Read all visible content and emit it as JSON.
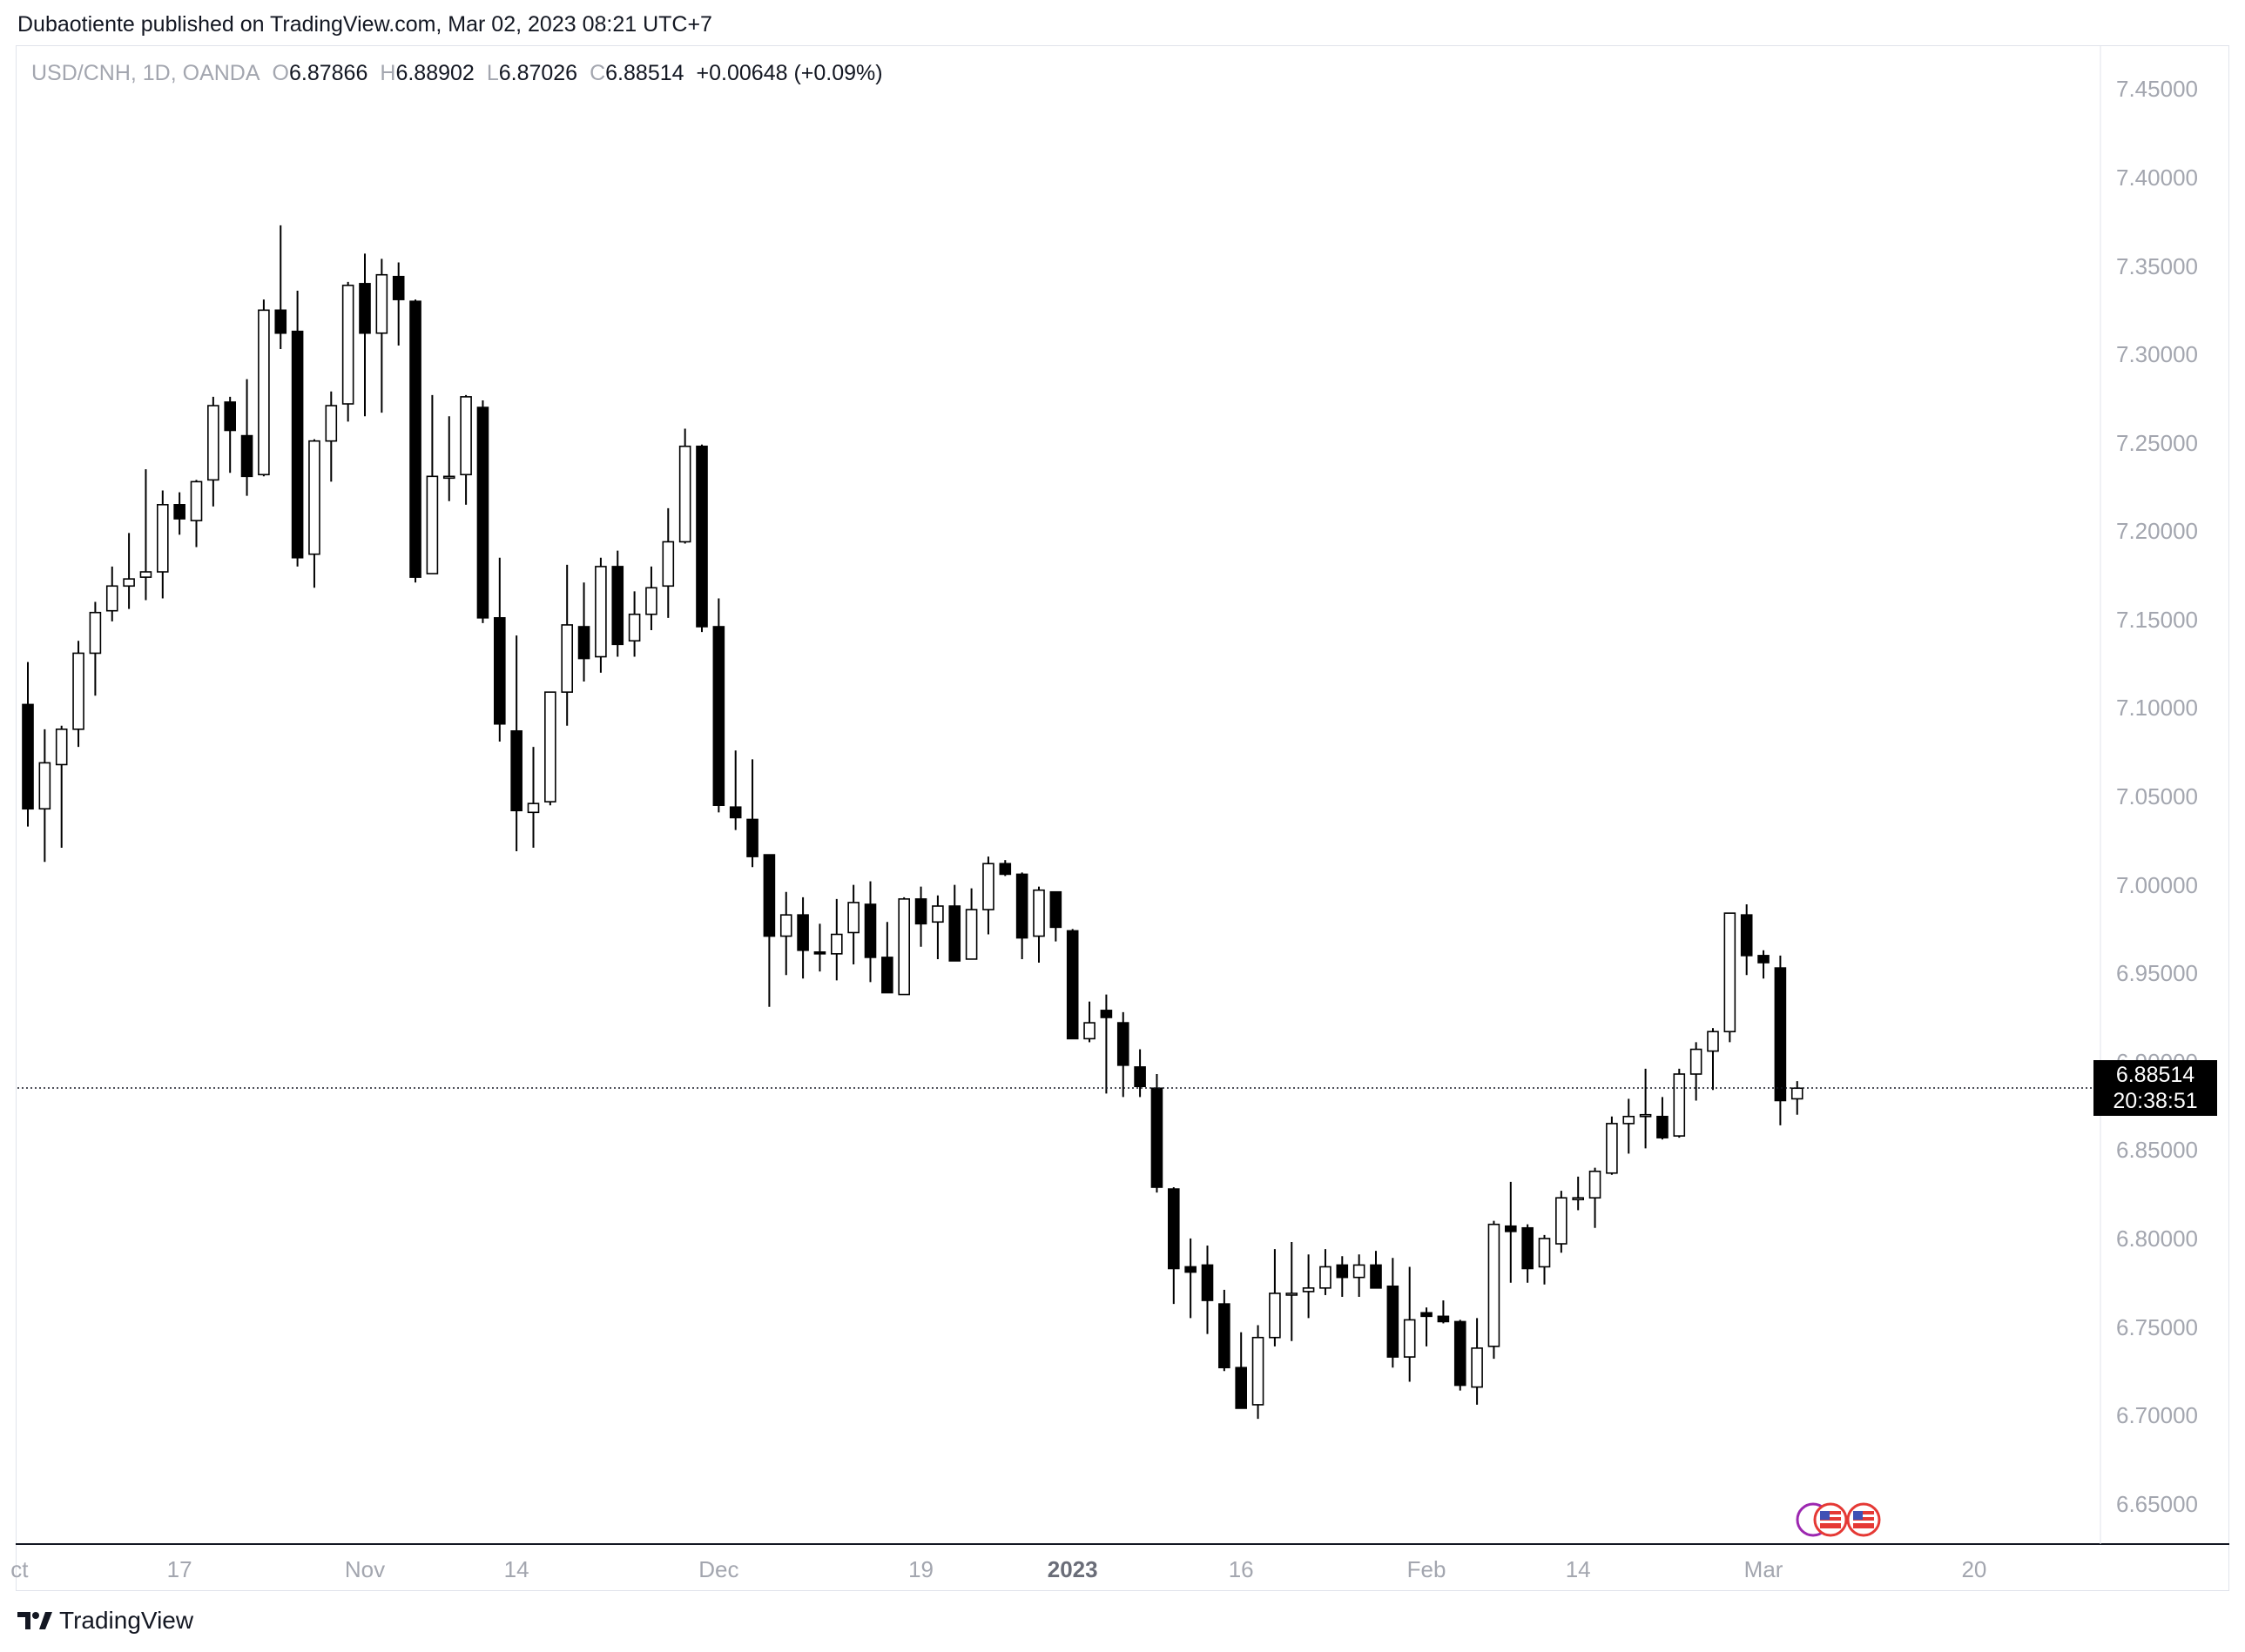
{
  "header": {
    "published": "Dubaotiente published on TradingView.com, Mar 02, 2023 08:21 UTC+7"
  },
  "legend": {
    "symbol": "USD/CNH, 1D, OANDA",
    "o_label": "O",
    "o": "6.87866",
    "h_label": "H",
    "h": "6.88902",
    "l_label": "L",
    "l": "6.87026",
    "c_label": "C",
    "c": "6.88514",
    "change": "+0.00648 (+0.09%)"
  },
  "current": {
    "price": "6.88514",
    "countdown": "20:38:51",
    "value": 6.88514
  },
  "footer": {
    "brand": "TradingView"
  },
  "chart_data": {
    "type": "candlestick",
    "ylim": [
      6.6272,
      7.4748
    ],
    "y_ticks": [
      "7.45000",
      "7.40000",
      "7.35000",
      "7.30000",
      "7.25000",
      "7.20000",
      "7.15000",
      "7.10000",
      "7.05000",
      "7.00000",
      "6.95000",
      "6.90000",
      "6.85000",
      "6.80000",
      "6.75000",
      "6.70000",
      "6.65000"
    ],
    "x_ticks": [
      {
        "label": "ct",
        "index": -0.5
      },
      {
        "label": "17",
        "index": 9
      },
      {
        "label": "Nov",
        "index": 20
      },
      {
        "label": "14",
        "index": 29
      },
      {
        "label": "Dec",
        "index": 41
      },
      {
        "label": "19",
        "index": 53
      },
      {
        "label": "2023",
        "index": 62,
        "bold": true
      },
      {
        "label": "16",
        "index": 72
      },
      {
        "label": "Feb",
        "index": 83
      },
      {
        "label": "14",
        "index": 92
      },
      {
        "label": "Mar",
        "index": 103
      },
      {
        "label": "20",
        "index": 115.5
      }
    ],
    "candles": [
      [
        7.102,
        7.126,
        7.033,
        7.043
      ],
      [
        7.043,
        7.088,
        7.013,
        7.069
      ],
      [
        7.068,
        7.09,
        7.021,
        7.088
      ],
      [
        7.088,
        7.138,
        7.078,
        7.131
      ],
      [
        7.131,
        7.16,
        7.107,
        7.154
      ],
      [
        7.155,
        7.18,
        7.149,
        7.169
      ],
      [
        7.169,
        7.199,
        7.156,
        7.173
      ],
      [
        7.174,
        7.235,
        7.161,
        7.177
      ],
      [
        7.177,
        7.223,
        7.162,
        7.215
      ],
      [
        7.215,
        7.222,
        7.198,
        7.207
      ],
      [
        7.206,
        7.229,
        7.191,
        7.228
      ],
      [
        7.229,
        7.276,
        7.214,
        7.271
      ],
      [
        7.273,
        7.276,
        7.233,
        7.257
      ],
      [
        7.254,
        7.286,
        7.22,
        7.231
      ],
      [
        7.232,
        7.331,
        7.231,
        7.325
      ],
      [
        7.325,
        7.373,
        7.303,
        7.312
      ],
      [
        7.313,
        7.336,
        7.18,
        7.185
      ],
      [
        7.187,
        7.252,
        7.168,
        7.251
      ],
      [
        7.251,
        7.279,
        7.228,
        7.271
      ],
      [
        7.272,
        7.341,
        7.262,
        7.339
      ],
      [
        7.34,
        7.357,
        7.265,
        7.312
      ],
      [
        7.312,
        7.354,
        7.267,
        7.345
      ],
      [
        7.344,
        7.352,
        7.305,
        7.331
      ],
      [
        7.33,
        7.331,
        7.171,
        7.174
      ],
      [
        7.176,
        7.277,
        7.176,
        7.231
      ],
      [
        7.231,
        7.265,
        7.217,
        7.231
      ],
      [
        7.232,
        7.277,
        7.215,
        7.276
      ],
      [
        7.27,
        7.274,
        7.148,
        7.151
      ],
      [
        7.151,
        7.185,
        7.081,
        7.091
      ],
      [
        7.087,
        7.141,
        7.019,
        7.042
      ],
      [
        7.041,
        7.078,
        7.021,
        7.046
      ],
      [
        7.047,
        7.109,
        7.045,
        7.109
      ],
      [
        7.109,
        7.181,
        7.09,
        7.147
      ],
      [
        7.146,
        7.171,
        7.115,
        7.128
      ],
      [
        7.129,
        7.185,
        7.12,
        7.18
      ],
      [
        7.18,
        7.189,
        7.129,
        7.136
      ],
      [
        7.138,
        7.166,
        7.129,
        7.153
      ],
      [
        7.153,
        7.18,
        7.144,
        7.168
      ],
      [
        7.169,
        7.213,
        7.151,
        7.194
      ],
      [
        7.194,
        7.258,
        7.193,
        7.248
      ],
      [
        7.248,
        7.249,
        7.143,
        7.146
      ],
      [
        7.146,
        7.162,
        7.041,
        7.045
      ],
      [
        7.044,
        7.076,
        7.031,
        7.038
      ],
      [
        7.037,
        7.071,
        7.01,
        7.016
      ],
      [
        7.017,
        7.014,
        6.931,
        6.971
      ],
      [
        6.971,
        6.996,
        6.949,
        6.983
      ],
      [
        6.983,
        6.993,
        6.947,
        6.963
      ],
      [
        6.962,
        6.978,
        6.951,
        6.961
      ],
      [
        6.961,
        6.992,
        6.946,
        6.972
      ],
      [
        6.973,
        7.0,
        6.955,
        6.99
      ],
      [
        6.989,
        7.002,
        6.945,
        6.959
      ],
      [
        6.959,
        6.979,
        6.939,
        6.939
      ],
      [
        6.938,
        6.993,
        6.938,
        6.992
      ],
      [
        6.992,
        6.999,
        6.965,
        6.978
      ],
      [
        6.979,
        6.994,
        6.958,
        6.988
      ],
      [
        6.988,
        7.0,
        6.958,
        6.957
      ],
      [
        6.958,
        6.998,
        6.958,
        6.986
      ],
      [
        6.986,
        7.016,
        6.972,
        7.012
      ],
      [
        7.012,
        7.014,
        7.005,
        7.006
      ],
      [
        7.006,
        7.007,
        6.958,
        6.97
      ],
      [
        6.971,
        6.999,
        6.956,
        6.997
      ],
      [
        6.996,
        6.996,
        6.968,
        6.976
      ],
      [
        6.974,
        6.975,
        6.921,
        6.913
      ],
      [
        6.913,
        6.934,
        6.911,
        6.922
      ],
      [
        6.929,
        6.938,
        6.882,
        6.925
      ],
      [
        6.922,
        6.928,
        6.88,
        6.898
      ],
      [
        6.897,
        6.907,
        6.88,
        6.886
      ],
      [
        6.885,
        6.893,
        6.826,
        6.829
      ],
      [
        6.828,
        6.829,
        6.763,
        6.783
      ],
      [
        6.784,
        6.8,
        6.755,
        6.781
      ],
      [
        6.785,
        6.796,
        6.746,
        6.765
      ],
      [
        6.763,
        6.771,
        6.725,
        6.727
      ],
      [
        6.727,
        6.747,
        6.704,
        6.704
      ],
      [
        6.706,
        6.751,
        6.698,
        6.744
      ],
      [
        6.744,
        6.794,
        6.739,
        6.769
      ],
      [
        6.768,
        6.798,
        6.742,
        6.769
      ],
      [
        6.77,
        6.791,
        6.755,
        6.772
      ],
      [
        6.772,
        6.794,
        6.768,
        6.784
      ],
      [
        6.785,
        6.79,
        6.767,
        6.778
      ],
      [
        6.778,
        6.791,
        6.767,
        6.785
      ],
      [
        6.785,
        6.793,
        6.772,
        6.772
      ],
      [
        6.773,
        6.789,
        6.727,
        6.733
      ],
      [
        6.733,
        6.784,
        6.719,
        6.754
      ],
      [
        6.758,
        6.761,
        6.739,
        6.756
      ],
      [
        6.756,
        6.765,
        6.752,
        6.753
      ],
      [
        6.753,
        6.754,
        6.714,
        6.717
      ],
      [
        6.716,
        6.755,
        6.706,
        6.738
      ],
      [
        6.739,
        6.81,
        6.732,
        6.808
      ],
      [
        6.807,
        6.832,
        6.775,
        6.804
      ],
      [
        6.806,
        6.808,
        6.775,
        6.783
      ],
      [
        6.784,
        6.802,
        6.774,
        6.8
      ],
      [
        6.797,
        6.827,
        6.792,
        6.823
      ],
      [
        6.822,
        6.835,
        6.816,
        6.823
      ],
      [
        6.823,
        6.84,
        6.806,
        6.838
      ],
      [
        6.837,
        6.869,
        6.836,
        6.865
      ],
      [
        6.865,
        6.879,
        6.848,
        6.869
      ],
      [
        6.869,
        6.896,
        6.851,
        6.87
      ],
      [
        6.869,
        6.88,
        6.856,
        6.857
      ],
      [
        6.858,
        6.896,
        6.857,
        6.893
      ],
      [
        6.893,
        6.911,
        6.878,
        6.907
      ],
      [
        6.906,
        6.919,
        6.884,
        6.917
      ],
      [
        6.917,
        6.984,
        6.911,
        6.984
      ],
      [
        6.983,
        6.989,
        6.949,
        6.96
      ],
      [
        6.96,
        6.963,
        6.947,
        6.956
      ],
      [
        6.953,
        6.96,
        6.864,
        6.878
      ],
      [
        6.879,
        6.889,
        6.87,
        6.885
      ]
    ]
  },
  "colors": {
    "up_body": "#ffffff",
    "down_body": "#000000",
    "wick": "#000000",
    "grid": "#e0e3eb",
    "axis_text": "#a3a6af"
  }
}
